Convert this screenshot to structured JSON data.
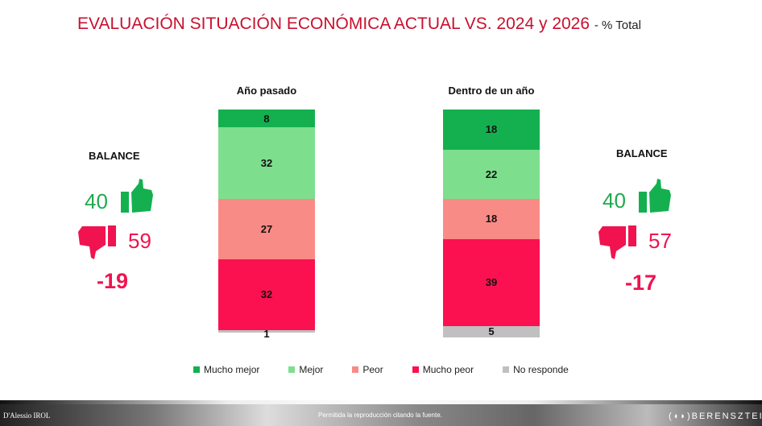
{
  "title": {
    "main": "EVALUACIÓN SITUACIÓN ECONÓMICA ACTUAL VS. 2024 y 2026",
    "suffix": "- % Total"
  },
  "colors": {
    "mucho_mejor": "#14b04f",
    "mejor": "#7ddf8e",
    "peor": "#f98b86",
    "mucho_peor": "#fb1150",
    "no_responde": "#c0c0c0"
  },
  "chart_data": {
    "type": "bar",
    "stacked": true,
    "unit": "%",
    "categories": [
      "Año pasado",
      "Dentro de un año"
    ],
    "series": [
      {
        "name": "Mucho mejor",
        "values": [
          8,
          18
        ]
      },
      {
        "name": "Mejor",
        "values": [
          32,
          22
        ]
      },
      {
        "name": "Peor",
        "values": [
          27,
          18
        ]
      },
      {
        "name": "Mucho peor",
        "values": [
          32,
          39
        ]
      },
      {
        "name": "No responde",
        "values": [
          1,
          5
        ]
      }
    ],
    "legend": "bottom"
  },
  "balance_left": {
    "label": "BALANCE",
    "positive": "40",
    "negative": "59",
    "net": "-19",
    "positive_icon": "thumbs-up-icon",
    "negative_icon": "thumbs-down-icon"
  },
  "balance_right": {
    "label": "BALANCE",
    "positive": "40",
    "negative": "57",
    "net": "-17",
    "positive_icon": "thumbs-up-icon",
    "negative_icon": "thumbs-down-icon"
  },
  "footer": {
    "left_logo": "D'Alessio IROL",
    "center": "Permitida la reproducción citando la fuente.",
    "right_logo": "BERENSZTEIN"
  }
}
